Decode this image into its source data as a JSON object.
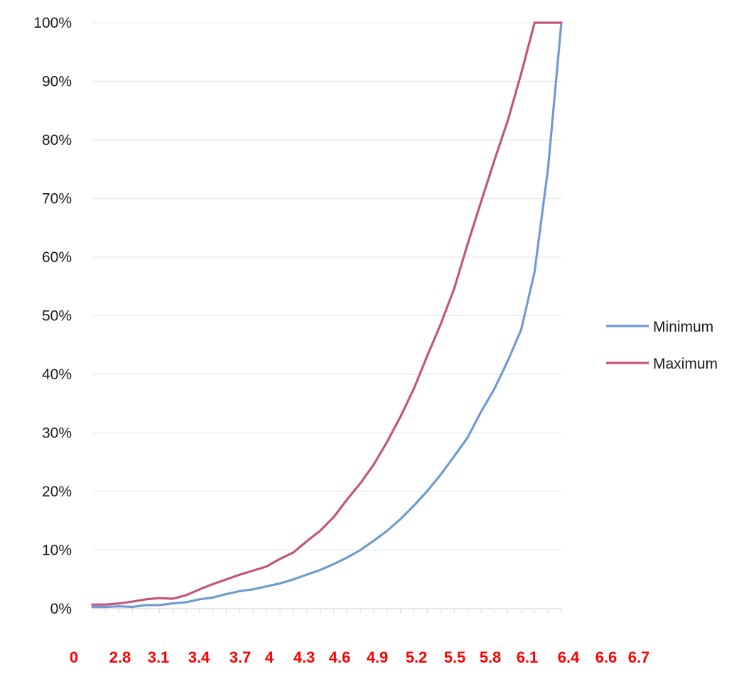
{
  "chart_data": {
    "type": "line",
    "title": "",
    "xlabel": "",
    "ylabel": "",
    "ylim": [
      0,
      100
    ],
    "y_ticks": [
      "0%",
      "10%",
      "20%",
      "30%",
      "40%",
      "50%",
      "60%",
      "70%",
      "80%",
      "90%",
      "100%"
    ],
    "x_tick_labels": [
      "0",
      "2.8",
      "3.1",
      "3.4",
      "3.7",
      "4",
      "4.3",
      "4.6",
      "4.9",
      "5.2",
      "5.5",
      "5.8",
      "6.1",
      "6.4",
      "6.6",
      "6.7"
    ],
    "grid": true,
    "legend_position": "right",
    "series": [
      {
        "name": "Minimum",
        "color": "#6f9bd1",
        "values": [
          0.3,
          0.3,
          0.4,
          0.3,
          0.6,
          0.6,
          0.9,
          1.1,
          1.6,
          1.9,
          2.5,
          3.0,
          3.3,
          3.8,
          4.3,
          5.0,
          5.8,
          6.6,
          7.6,
          8.7,
          10.0,
          11.6,
          13.3,
          15.3,
          17.6,
          20.1,
          22.9,
          26.0,
          29.2,
          33.6,
          37.5,
          42.3,
          47.6,
          57.5,
          75.0,
          100
        ]
      },
      {
        "name": "Maximum",
        "color": "#c2557c",
        "values": [
          0.7,
          0.7,
          0.9,
          1.2,
          1.6,
          1.8,
          1.7,
          2.3,
          3.3,
          4.2,
          5.0,
          5.8,
          6.5,
          7.2,
          8.5,
          9.6,
          11.5,
          13.3,
          15.6,
          18.6,
          21.4,
          24.6,
          28.5,
          32.8,
          37.6,
          43.2,
          48.6,
          54.6,
          62.2,
          69.4,
          76.5,
          83.3,
          91.3,
          100,
          100,
          100
        ]
      }
    ]
  }
}
